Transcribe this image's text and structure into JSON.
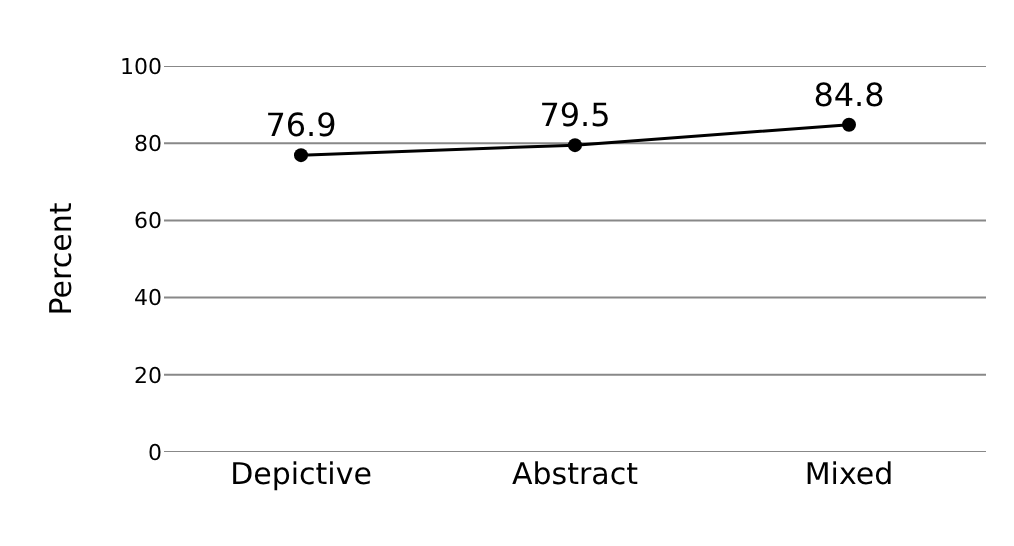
{
  "chart_data": {
    "type": "line",
    "ylabel": "Percent",
    "categories": [
      "Depictive",
      "Abstract",
      "Mixed"
    ],
    "series": [
      {
        "color": "#000000",
        "values": [
          76.9,
          79.5,
          84.8
        ]
      }
    ],
    "ylim": [
      0,
      100
    ],
    "yticks": [
      0,
      20,
      40,
      60,
      80,
      100
    ],
    "grid": "y",
    "marker": "circle",
    "line_style": "solid",
    "data_labels": true
  }
}
